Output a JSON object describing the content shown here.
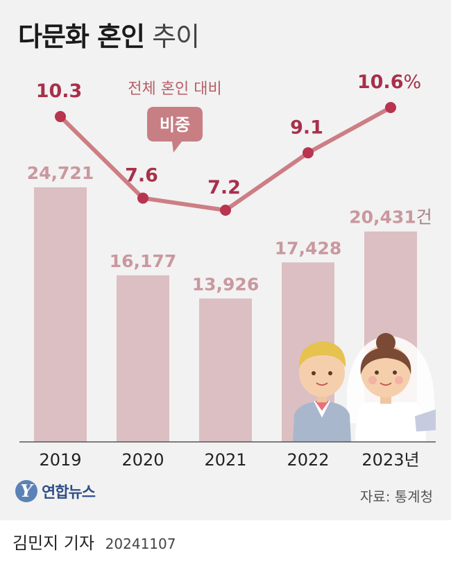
{
  "title": {
    "bold": "다문화 혼인",
    "light": "추이"
  },
  "chart_data": {
    "type": "bar",
    "categories": [
      "2019",
      "2020",
      "2021",
      "2022",
      "2023년"
    ],
    "series": [
      {
        "type": "bar",
        "values": [
          24721,
          16177,
          13926,
          17428,
          20431
        ],
        "labels": [
          "24,721",
          "16,177",
          "13,926",
          "17,428",
          "20,431"
        ],
        "unit": "건"
      },
      {
        "type": "line",
        "values": [
          10.3,
          7.6,
          7.2,
          9.1,
          10.6
        ],
        "labels": [
          "10.3",
          "7.6",
          "7.2",
          "9.1",
          "10.6"
        ],
        "unit": "%"
      }
    ],
    "annotation": {
      "line1": "전체 혼인 대비",
      "line2": "비중"
    },
    "colors": {
      "bar": "#dcbfc3",
      "bar_label": "#c9989f",
      "line": "#cc7e84",
      "dot": "#b8344f",
      "line_label": "#a8304a",
      "callout": "#c77f84"
    }
  },
  "footer": {
    "logo_mark": "Y",
    "logo_text": "연합뉴스",
    "source": "자료: 통계청"
  },
  "byline": {
    "name": "김민지 기자",
    "date": "20241107"
  }
}
